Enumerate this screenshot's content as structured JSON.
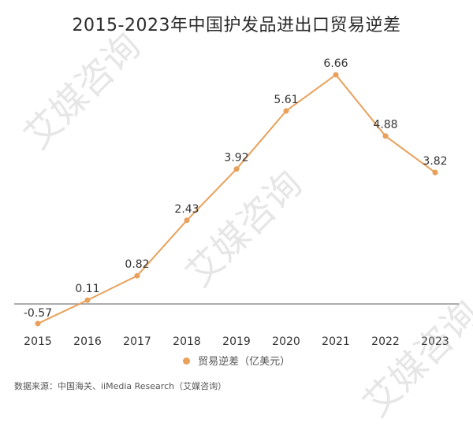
{
  "title": "2015-2023年中国护发品进出口贸易逆差",
  "source": "数据来源：中国海关、iiMedia Research（艾媒咨询）",
  "watermark": "艾媒咨询",
  "colors": {
    "series": "#E8A05A",
    "axis": "#7a7a7a",
    "label": "#333333"
  },
  "chart_data": {
    "type": "line",
    "title": "2015-2023年中国护发品进出口贸易逆差",
    "x": [
      "2015",
      "2016",
      "2017",
      "2018",
      "2019",
      "2020",
      "2021",
      "2022",
      "2023"
    ],
    "series": [
      {
        "name": "贸易逆差（亿美元）",
        "values": [
          -0.57,
          0.11,
          0.82,
          2.43,
          3.92,
          5.61,
          6.66,
          4.88,
          3.82
        ]
      }
    ],
    "ylim": [
      -0.9,
      7.0
    ],
    "grid": false,
    "legend": "bottom-center",
    "data_labels": true
  }
}
